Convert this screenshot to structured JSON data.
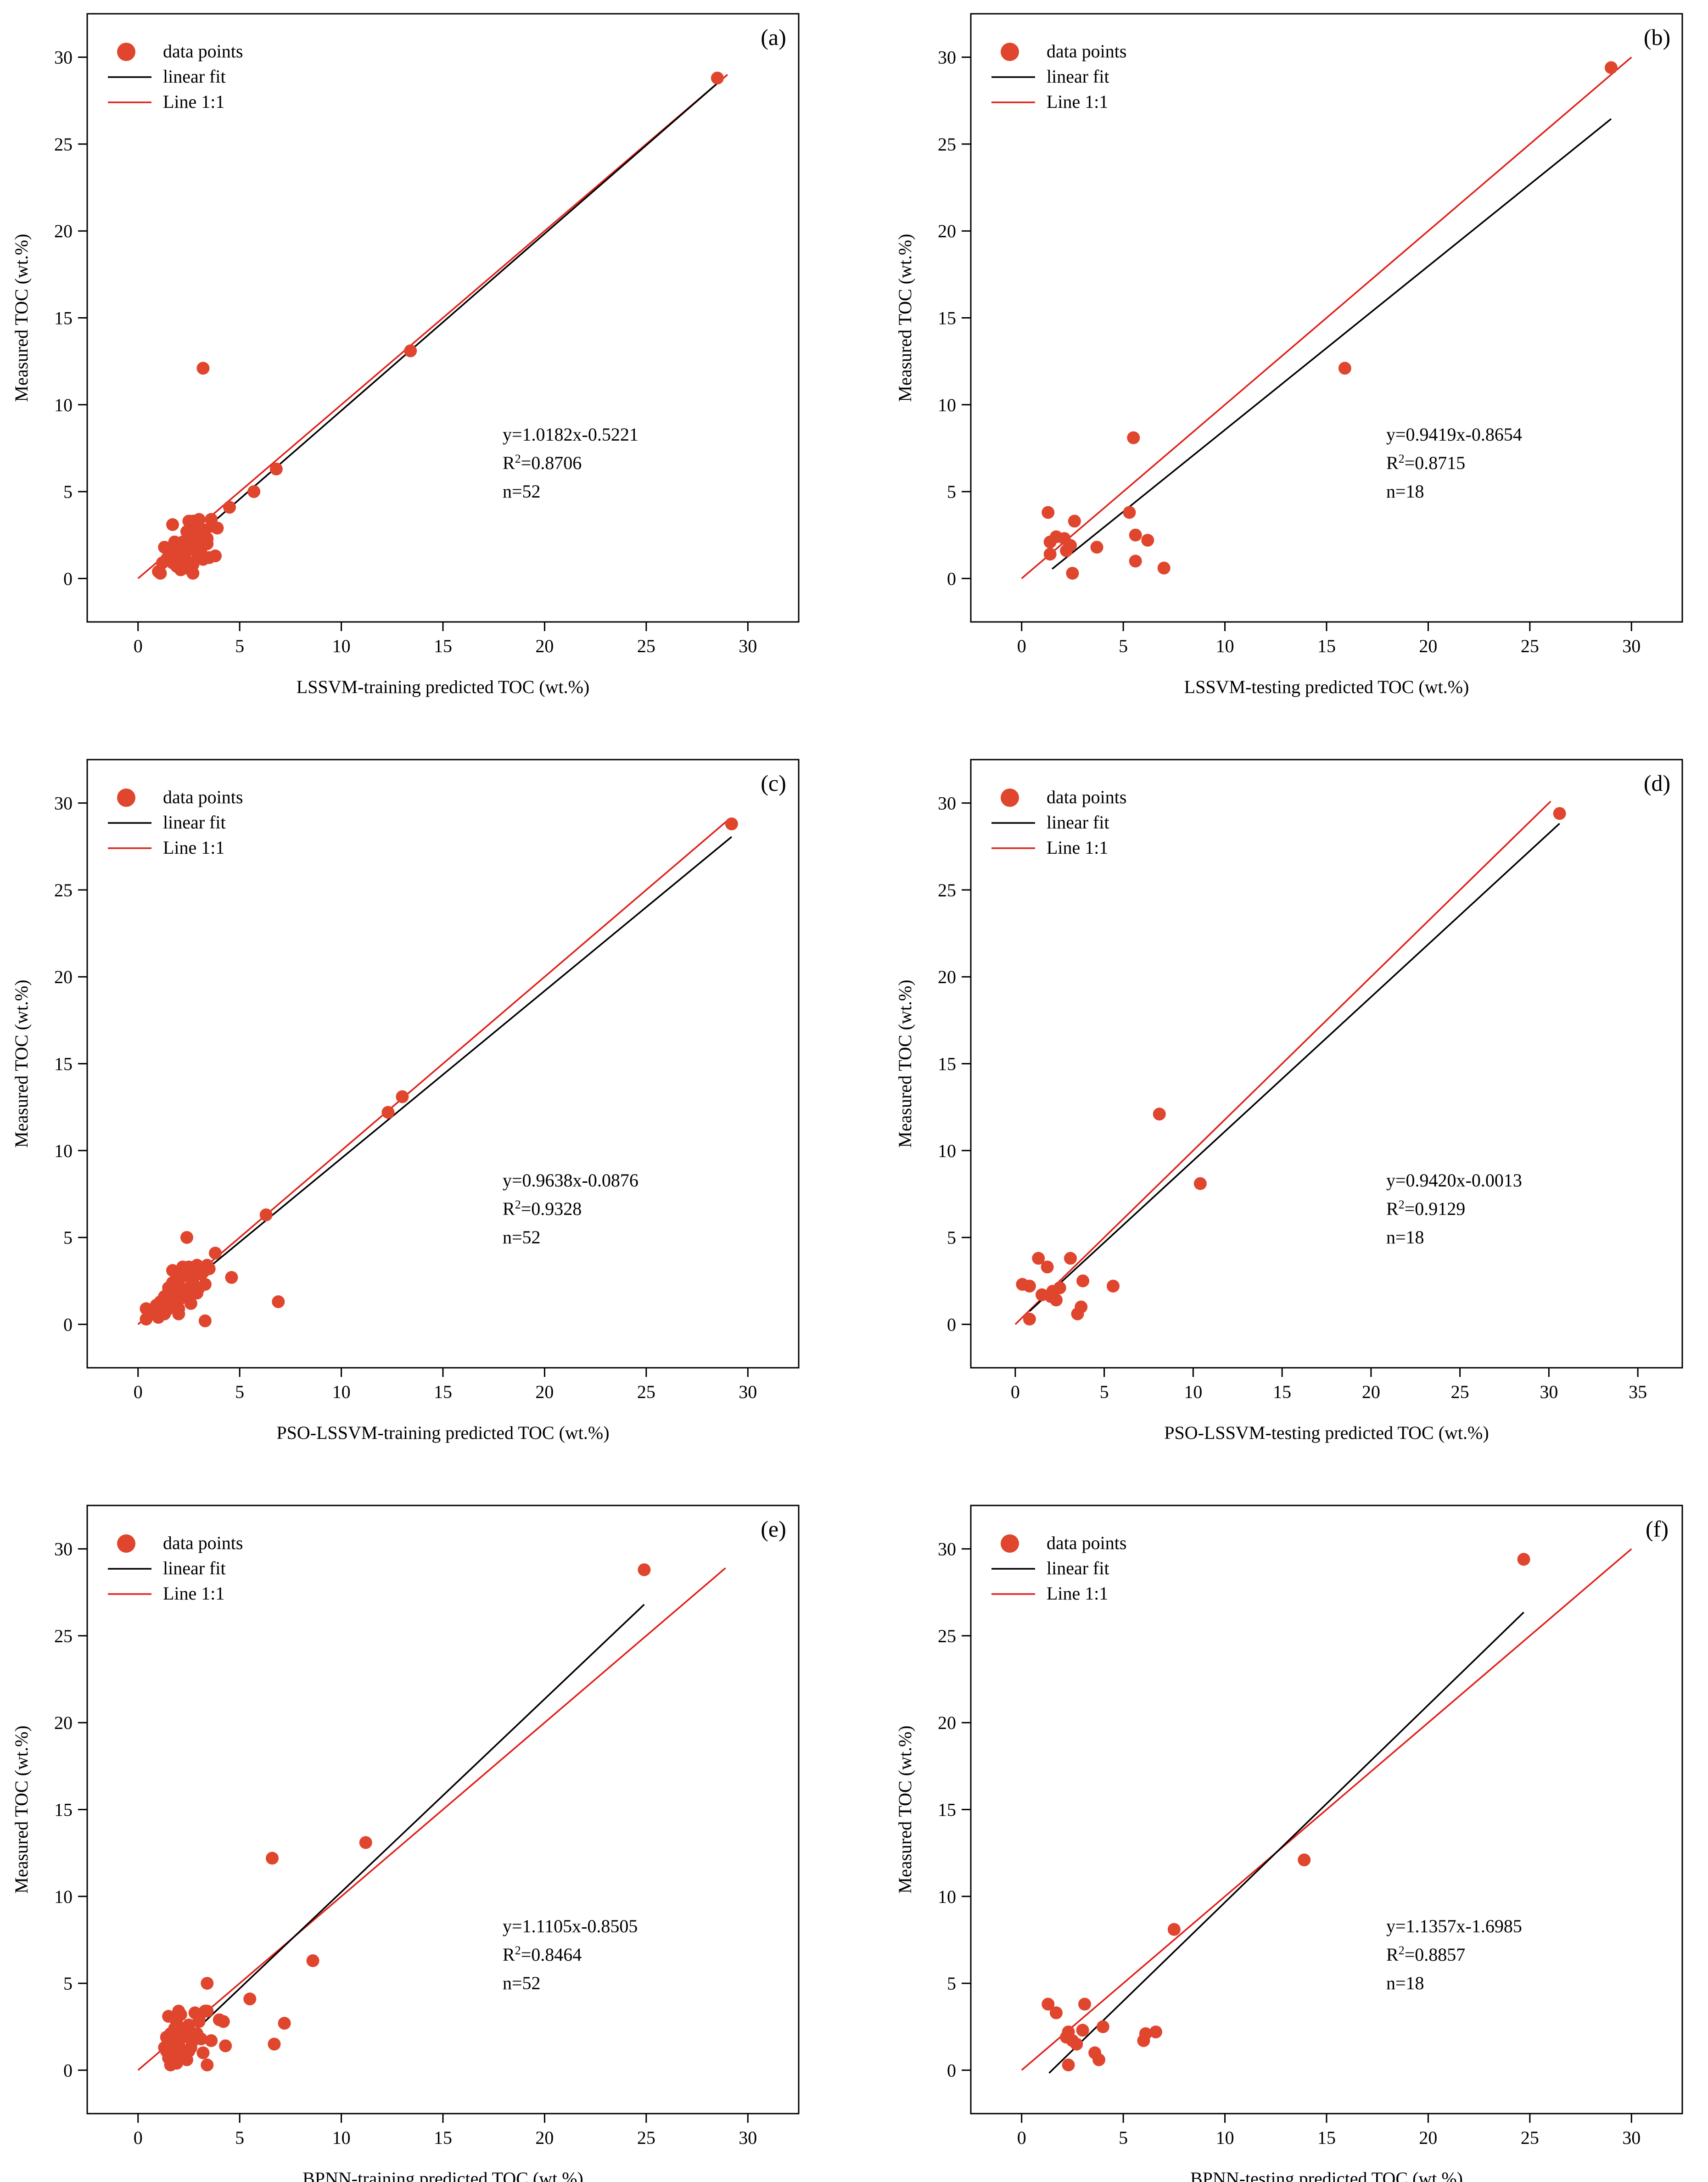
{
  "colors": {
    "points": "#E0452E",
    "fit": "#000000",
    "identity": "#E0201B",
    "axes": "#000000"
  },
  "chart_data": [
    {
      "type": "scatter",
      "panel": "(a)",
      "xlabel": "LSSVM-training predicted TOC (wt.%)",
      "ylabel": "Measured TOC (wt.%)",
      "xlim": [
        -2.5,
        32.5
      ],
      "ylim": [
        -2.5,
        32.5
      ],
      "xticks": [
        0,
        5,
        10,
        15,
        20,
        25,
        30
      ],
      "yticks": [
        0,
        5,
        10,
        15,
        20,
        25,
        30
      ],
      "legend": [
        "data points",
        "linear fit",
        "Line 1:1"
      ],
      "equation": "y=1.0182x-0.5221",
      "r2_prefix": "R",
      "r2_sup": "2",
      "r2_value": "=0.8706",
      "n": "n=52",
      "fit": {
        "slope": 1.0182,
        "intercept": -0.5221,
        "x_range": [
          1.0,
          28.5
        ]
      },
      "identity_range": [
        0,
        29
      ],
      "points": [
        [
          28.5,
          28.8
        ],
        [
          13.4,
          13.1
        ],
        [
          3.2,
          12.1
        ],
        [
          6.8,
          6.3
        ],
        [
          5.7,
          5.0
        ],
        [
          4.5,
          4.1
        ],
        [
          3.6,
          3.4
        ],
        [
          3.9,
          2.9
        ],
        [
          3.0,
          3.4
        ],
        [
          2.7,
          3.3
        ],
        [
          1.7,
          3.1
        ],
        [
          3.3,
          2.8
        ],
        [
          2.9,
          2.6
        ],
        [
          2.5,
          2.4
        ],
        [
          3.4,
          2.3
        ],
        [
          2.2,
          2.1
        ],
        [
          1.8,
          2.1
        ],
        [
          2.6,
          2.0
        ],
        [
          2.0,
          1.9
        ],
        [
          1.3,
          1.8
        ],
        [
          3.1,
          1.7
        ],
        [
          2.8,
          1.6
        ],
        [
          1.6,
          1.5
        ],
        [
          2.3,
          1.4
        ],
        [
          3.8,
          1.3
        ],
        [
          3.5,
          1.2
        ],
        [
          1.4,
          1.1
        ],
        [
          2.1,
          1.0
        ],
        [
          1.2,
          0.9
        ],
        [
          2.7,
          0.8
        ],
        [
          1.9,
          0.7
        ],
        [
          2.4,
          0.6
        ],
        [
          2.1,
          0.5
        ],
        [
          1.0,
          0.4
        ],
        [
          2.7,
          0.3
        ],
        [
          3.0,
          2.2
        ],
        [
          2.0,
          1.2
        ],
        [
          1.5,
          1.3
        ],
        [
          2.6,
          1.9
        ],
        [
          3.2,
          1.1
        ],
        [
          2.9,
          3.0
        ],
        [
          2.4,
          2.7
        ],
        [
          1.1,
          0.3
        ],
        [
          3.7,
          3.0
        ],
        [
          2.2,
          1.6
        ],
        [
          3.0,
          1.4
        ],
        [
          2.6,
          0.9
        ],
        [
          1.7,
          0.9
        ],
        [
          3.4,
          2.0
        ],
        [
          2.5,
          3.3
        ],
        [
          3.1,
          2.5
        ],
        [
          1.8,
          1.8
        ]
      ]
    },
    {
      "type": "scatter",
      "panel": "(b)",
      "xlabel": "LSSVM-testing predicted TOC (wt.%)",
      "ylabel": "Measured TOC (wt.%)",
      "xlim": [
        -2.5,
        32.5
      ],
      "ylim": [
        -2.5,
        32.5
      ],
      "xticks": [
        0,
        5,
        10,
        15,
        20,
        25,
        30
      ],
      "yticks": [
        0,
        5,
        10,
        15,
        20,
        25,
        30
      ],
      "legend": [
        "data points",
        "linear fit",
        "Line 1:1"
      ],
      "equation": "y=0.9419x-0.8654",
      "r2_prefix": "R",
      "r2_sup": "2",
      "r2_value": "=0.8715",
      "n": "n=18",
      "fit": {
        "slope": 0.9419,
        "intercept": -0.8654,
        "x_range": [
          1.5,
          29.0
        ]
      },
      "identity_range": [
        0,
        30
      ],
      "points": [
        [
          29.0,
          29.4
        ],
        [
          15.9,
          12.1
        ],
        [
          5.5,
          8.1
        ],
        [
          1.3,
          3.8
        ],
        [
          5.3,
          3.8
        ],
        [
          2.6,
          3.3
        ],
        [
          5.6,
          2.5
        ],
        [
          1.7,
          2.4
        ],
        [
          1.4,
          2.1
        ],
        [
          2.1,
          2.3
        ],
        [
          6.2,
          2.2
        ],
        [
          2.4,
          1.9
        ],
        [
          2.2,
          1.6
        ],
        [
          3.7,
          1.8
        ],
        [
          1.4,
          1.4
        ],
        [
          5.6,
          1.0
        ],
        [
          7.0,
          0.6
        ],
        [
          2.5,
          0.3
        ]
      ]
    },
    {
      "type": "scatter",
      "panel": "(c)",
      "xlabel": "PSO-LSSVM-training predicted TOC (wt.%)",
      "ylabel": "Measured TOC (wt.%)",
      "xlim": [
        -2.5,
        32.5
      ],
      "ylim": [
        -2.5,
        32.5
      ],
      "xticks": [
        0,
        5,
        10,
        15,
        20,
        25,
        30
      ],
      "yticks": [
        0,
        5,
        10,
        15,
        20,
        25,
        30
      ],
      "legend": [
        "data points",
        "linear fit",
        "Line 1:1"
      ],
      "equation": "y=0.9638x-0.0876",
      "r2_prefix": "R",
      "r2_sup": "2",
      "r2_value": "=0.9328",
      "n": "n=52",
      "fit": {
        "slope": 0.9638,
        "intercept": -0.0876,
        "x_range": [
          0.3,
          29.2
        ]
      },
      "identity_range": [
        0,
        29
      ],
      "points": [
        [
          29.2,
          28.8
        ],
        [
          13.0,
          13.1
        ],
        [
          12.3,
          12.2
        ],
        [
          6.3,
          6.3
        ],
        [
          2.4,
          5.0
        ],
        [
          3.8,
          4.1
        ],
        [
          4.6,
          2.7
        ],
        [
          3.4,
          3.4
        ],
        [
          2.9,
          3.4
        ],
        [
          2.2,
          3.3
        ],
        [
          1.7,
          3.1
        ],
        [
          3.1,
          2.9
        ],
        [
          2.7,
          2.6
        ],
        [
          2.0,
          2.5
        ],
        [
          3.3,
          2.3
        ],
        [
          2.6,
          2.2
        ],
        [
          1.5,
          2.1
        ],
        [
          2.3,
          2.0
        ],
        [
          1.8,
          1.9
        ],
        [
          2.9,
          1.8
        ],
        [
          2.5,
          1.7
        ],
        [
          1.3,
          1.6
        ],
        [
          2.1,
          1.5
        ],
        [
          1.1,
          1.3
        ],
        [
          6.9,
          1.3
        ],
        [
          1.9,
          1.2
        ],
        [
          0.9,
          1.1
        ],
        [
          1.6,
          1.0
        ],
        [
          2.0,
          0.9
        ],
        [
          0.4,
          0.9
        ],
        [
          1.4,
          0.8
        ],
        [
          2.0,
          0.6
        ],
        [
          1.0,
          0.4
        ],
        [
          0.4,
          0.3
        ],
        [
          3.3,
          0.2
        ],
        [
          2.8,
          3.1
        ],
        [
          2.4,
          2.8
        ],
        [
          1.7,
          2.4
        ],
        [
          3.0,
          2.1
        ],
        [
          2.2,
          1.7
        ],
        [
          1.5,
          1.4
        ],
        [
          2.7,
          1.9
        ],
        [
          3.2,
          3.0
        ],
        [
          1.2,
          1.0
        ],
        [
          0.7,
          0.7
        ],
        [
          2.5,
          3.3
        ],
        [
          1.9,
          2.2
        ],
        [
          3.5,
          3.2
        ],
        [
          2.1,
          2.7
        ],
        [
          1.6,
          1.8
        ],
        [
          2.6,
          1.2
        ],
        [
          1.3,
          0.6
        ]
      ]
    },
    {
      "type": "scatter",
      "panel": "(d)",
      "xlabel": "PSO-LSSVM-testing predicted TOC (wt.%)",
      "ylabel": "Measured TOC (wt.%)",
      "xlim": [
        -2.5,
        37.5
      ],
      "ylim": [
        -2.5,
        32.5
      ],
      "xticks": [
        0,
        5,
        10,
        15,
        20,
        25,
        30,
        35
      ],
      "yticks": [
        0,
        5,
        10,
        15,
        20,
        25,
        30
      ],
      "legend": [
        "data points",
        "linear fit",
        "Line 1:1"
      ],
      "equation": "y=0.9420x-0.0013",
      "r2_prefix": "R",
      "r2_sup": "2",
      "r2_value": "=0.9129",
      "n": "n=18",
      "fit": {
        "slope": 0.942,
        "intercept": -0.0013,
        "x_range": [
          0.8,
          30.6
        ]
      },
      "identity_range": [
        0,
        30.1
      ],
      "points": [
        [
          30.6,
          29.4
        ],
        [
          8.1,
          12.1
        ],
        [
          10.4,
          8.1
        ],
        [
          1.3,
          3.8
        ],
        [
          3.1,
          3.8
        ],
        [
          1.8,
          3.3
        ],
        [
          3.8,
          2.5
        ],
        [
          0.4,
          2.3
        ],
        [
          0.8,
          2.2
        ],
        [
          5.5,
          2.2
        ],
        [
          2.5,
          2.1
        ],
        [
          1.5,
          1.7
        ],
        [
          2.1,
          1.9
        ],
        [
          2.3,
          1.4
        ],
        [
          3.7,
          1.0
        ],
        [
          3.5,
          0.6
        ],
        [
          0.8,
          0.3
        ],
        [
          2.0,
          1.6
        ]
      ]
    },
    {
      "type": "scatter",
      "panel": "(e)",
      "xlabel": "BPNN-training predicted TOC (wt.%)",
      "ylabel": "Measured TOC (wt.%)",
      "xlim": [
        -2.5,
        32.5
      ],
      "ylim": [
        -2.5,
        32.5
      ],
      "xticks": [
        0,
        5,
        10,
        15,
        20,
        25,
        30
      ],
      "yticks": [
        0,
        5,
        10,
        15,
        20,
        25,
        30
      ],
      "legend": [
        "data points",
        "linear fit",
        "Line 1:1"
      ],
      "equation": "y=1.1105x-0.8505",
      "r2_prefix": "R",
      "r2_sup": "2",
      "r2_value": "=0.8464",
      "n": "n=52",
      "fit": {
        "slope": 1.1105,
        "intercept": -0.8505,
        "x_range": [
          1.3,
          24.9
        ]
      },
      "identity_range": [
        0,
        28.9
      ],
      "points": [
        [
          24.9,
          28.8
        ],
        [
          11.2,
          13.1
        ],
        [
          6.6,
          12.2
        ],
        [
          8.6,
          6.3
        ],
        [
          3.4,
          5.0
        ],
        [
          5.5,
          4.1
        ],
        [
          2.0,
          3.4
        ],
        [
          3.3,
          3.4
        ],
        [
          2.8,
          3.3
        ],
        [
          2.1,
          3.2
        ],
        [
          1.5,
          3.1
        ],
        [
          4.0,
          2.9
        ],
        [
          3.0,
          2.8
        ],
        [
          7.2,
          2.7
        ],
        [
          2.5,
          2.6
        ],
        [
          1.8,
          2.4
        ],
        [
          2.2,
          2.3
        ],
        [
          1.6,
          2.1
        ],
        [
          2.4,
          2.0
        ],
        [
          1.4,
          1.9
        ],
        [
          3.1,
          1.8
        ],
        [
          2.7,
          1.7
        ],
        [
          3.6,
          1.7
        ],
        [
          1.7,
          1.6
        ],
        [
          6.7,
          1.5
        ],
        [
          2.0,
          1.5
        ],
        [
          4.3,
          1.4
        ],
        [
          1.3,
          1.3
        ],
        [
          2.6,
          1.3
        ],
        [
          1.9,
          1.2
        ],
        [
          1.4,
          1.1
        ],
        [
          3.2,
          1.0
        ],
        [
          1.6,
          0.9
        ],
        [
          2.3,
          0.8
        ],
        [
          1.5,
          0.7
        ],
        [
          1.7,
          0.5
        ],
        [
          1.9,
          0.4
        ],
        [
          1.6,
          0.3
        ],
        [
          3.4,
          0.3
        ],
        [
          2.9,
          2.1
        ],
        [
          2.2,
          1.9
        ],
        [
          1.8,
          1.5
        ],
        [
          2.5,
          1.1
        ],
        [
          3.0,
          3.0
        ],
        [
          1.5,
          1.4
        ],
        [
          2.1,
          0.9
        ],
        [
          3.4,
          3.4
        ],
        [
          2.6,
          1.8
        ],
        [
          1.8,
          1.0
        ],
        [
          4.2,
          2.8
        ],
        [
          2.4,
          0.6
        ],
        [
          1.9,
          2.7
        ]
      ]
    },
    {
      "type": "scatter",
      "panel": "(f)",
      "xlabel": "BPNN-testing predicted TOC (wt.%)",
      "ylabel": "Measured TOC (wt.%)",
      "xlim": [
        -2.5,
        32.5
      ],
      "ylim": [
        -2.5,
        32.5
      ],
      "xticks": [
        0,
        5,
        10,
        15,
        20,
        25,
        30
      ],
      "yticks": [
        0,
        5,
        10,
        15,
        20,
        25,
        30
      ],
      "legend": [
        "data points",
        "linear fit",
        "Line 1:1"
      ],
      "equation": "y=1.1357x-1.6985",
      "r2_prefix": "R",
      "r2_sup": "2",
      "r2_value": "=0.8857",
      "n": "n=18",
      "fit": {
        "slope": 1.1357,
        "intercept": -1.6985,
        "x_range": [
          1.35,
          24.7
        ]
      },
      "identity_range": [
        0,
        30
      ],
      "points": [
        [
          24.7,
          29.4
        ],
        [
          13.9,
          12.1
        ],
        [
          7.5,
          8.1
        ],
        [
          1.3,
          3.8
        ],
        [
          3.1,
          3.8
        ],
        [
          1.7,
          3.3
        ],
        [
          4.0,
          2.5
        ],
        [
          3.0,
          2.3
        ],
        [
          2.3,
          2.2
        ],
        [
          6.6,
          2.2
        ],
        [
          6.1,
          2.1
        ],
        [
          2.2,
          1.9
        ],
        [
          6.0,
          1.7
        ],
        [
          2.7,
          1.5
        ],
        [
          3.6,
          1.0
        ],
        [
          3.8,
          0.6
        ],
        [
          2.3,
          0.3
        ],
        [
          2.5,
          1.7
        ]
      ]
    }
  ]
}
